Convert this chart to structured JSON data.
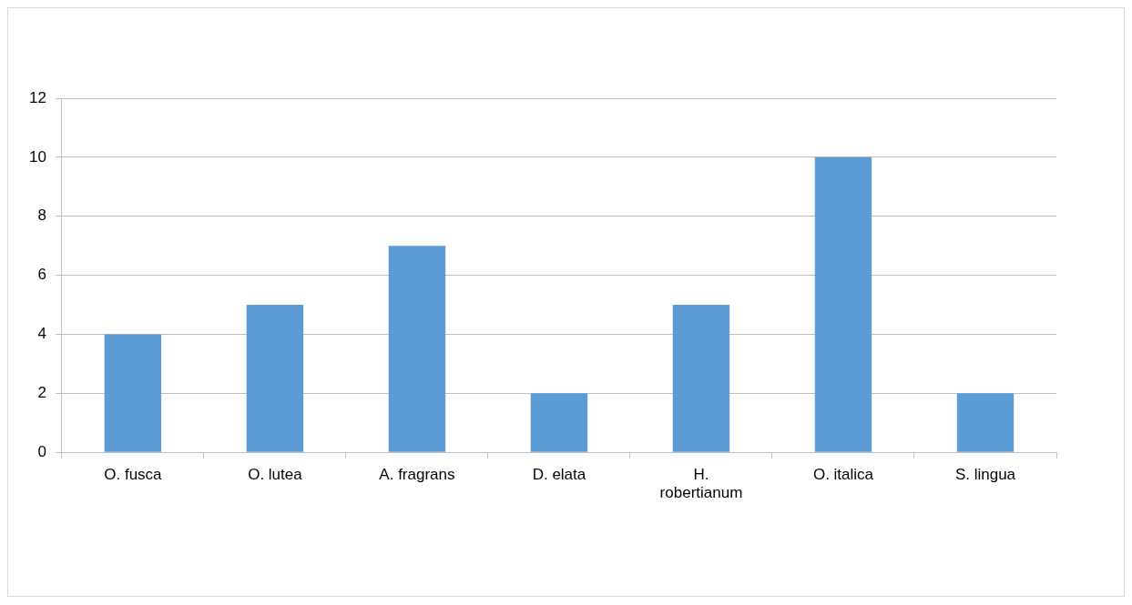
{
  "chart_data": {
    "type": "bar",
    "categories": [
      "O. fusca",
      "O. lutea",
      "A. fragrans",
      "D. elata",
      "H. robertianum",
      "O. italica",
      "S. lingua"
    ],
    "values": [
      4,
      5,
      7,
      2,
      5,
      10,
      2
    ],
    "color": "#5b9bd5",
    "ylim": [
      0,
      12
    ],
    "yticks": [
      0,
      2,
      4,
      6,
      8,
      10,
      12
    ],
    "grid": "y",
    "legend": false
  }
}
